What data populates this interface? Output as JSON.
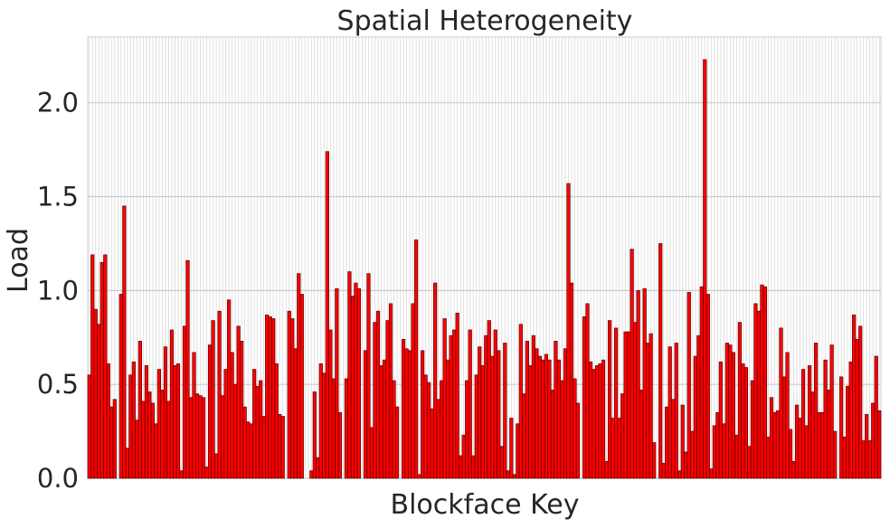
{
  "chart_data": {
    "type": "bar",
    "title": "Spatial Heterogeneity",
    "xlabel": "Blockface Key",
    "ylabel": "Load",
    "ylim": [
      0,
      2.35
    ],
    "y_ticks": [
      "0.0",
      "0.5",
      "1.0",
      "1.5",
      "2.0"
    ],
    "x_tick_labels_visible": false,
    "grid": true,
    "bar_color": "#ff0000",
    "bar_edge_color": "#550000",
    "values": [
      0.55,
      1.19,
      0.9,
      0.82,
      1.15,
      1.19,
      0.61,
      0.38,
      0.42,
      0.0,
      0.98,
      1.45,
      0.16,
      0.55,
      0.62,
      0.31,
      0.73,
      0.41,
      0.6,
      0.46,
      0.4,
      0.29,
      0.58,
      0.47,
      0.7,
      0.41,
      0.79,
      0.6,
      0.61,
      0.04,
      0.81,
      1.16,
      0.43,
      0.67,
      0.45,
      0.44,
      0.43,
      0.06,
      0.71,
      0.84,
      0.13,
      0.89,
      0.44,
      0.58,
      0.95,
      0.67,
      0.5,
      0.81,
      0.73,
      0.38,
      0.3,
      0.29,
      0.58,
      0.49,
      0.52,
      0.33,
      0.87,
      0.86,
      0.85,
      0.61,
      0.34,
      0.33,
      0.0,
      0.89,
      0.85,
      0.69,
      1.09,
      0.98,
      0.0,
      0.0,
      0.04,
      0.46,
      0.11,
      0.61,
      0.56,
      1.74,
      0.79,
      0.53,
      1.01,
      0.35,
      0.0,
      0.53,
      1.1,
      0.97,
      1.04,
      1.01,
      0.0,
      0.68,
      1.09,
      0.27,
      0.83,
      0.89,
      0.6,
      0.63,
      0.84,
      0.93,
      0.52,
      0.38,
      0.0,
      0.74,
      0.69,
      0.68,
      0.93,
      1.27,
      0.02,
      0.68,
      0.55,
      0.51,
      0.37,
      1.04,
      0.42,
      0.52,
      0.85,
      0.63,
      0.76,
      0.79,
      0.88,
      0.12,
      0.23,
      0.52,
      0.79,
      0.12,
      0.55,
      0.7,
      0.6,
      0.76,
      0.84,
      0.65,
      0.79,
      0.68,
      0.17,
      0.72,
      0.04,
      0.32,
      0.02,
      0.29,
      0.82,
      0.45,
      0.73,
      0.6,
      0.76,
      0.69,
      0.65,
      0.63,
      0.66,
      0.63,
      0.47,
      0.73,
      0.63,
      0.52,
      0.69,
      1.57,
      1.04,
      0.53,
      0.4,
      0.0,
      0.86,
      0.93,
      0.62,
      0.58,
      0.6,
      0.61,
      0.63,
      0.09,
      0.84,
      0.32,
      0.8,
      0.32,
      0.45,
      0.78,
      0.78,
      1.22,
      0.83,
      1.0,
      0.47,
      1.01,
      0.72,
      0.77,
      0.19,
      0.0,
      1.25,
      0.08,
      0.38,
      0.7,
      0.42,
      0.72,
      0.04,
      0.39,
      0.14,
      0.99,
      0.25,
      0.65,
      0.76,
      1.02,
      2.23,
      0.98,
      0.05,
      0.28,
      0.35,
      0.62,
      0.29,
      0.72,
      0.71,
      0.67,
      0.23,
      0.83,
      0.61,
      0.59,
      0.17,
      0.52,
      0.93,
      0.89,
      1.03,
      1.02,
      0.22,
      0.43,
      0.35,
      0.36,
      0.8,
      0.54,
      0.67,
      0.26,
      0.09,
      0.39,
      0.32,
      0.58,
      0.28,
      0.6,
      0.46,
      0.72,
      0.35,
      0.35,
      0.63,
      0.47,
      0.71,
      0.25,
      0.0,
      0.54,
      0.22,
      0.49,
      0.62,
      0.87,
      0.74,
      0.81,
      0.2,
      0.34,
      0.2,
      0.4,
      0.65,
      0.36
    ]
  }
}
